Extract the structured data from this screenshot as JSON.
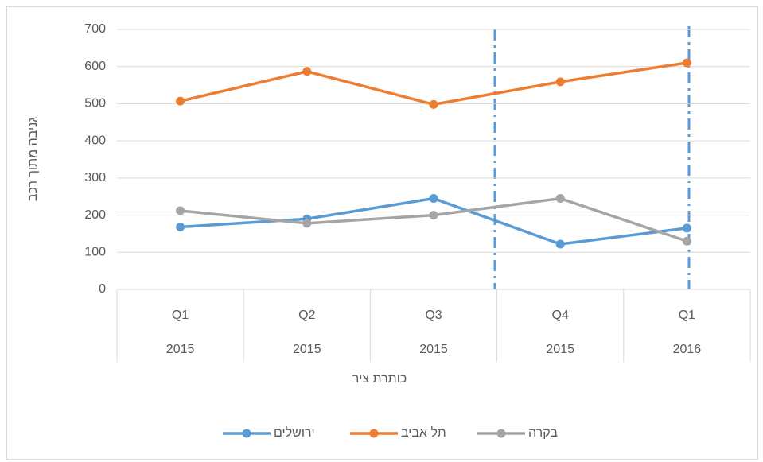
{
  "chart_data": {
    "type": "line",
    "y_label": "גניבה מתוך רכב",
    "x_label": "כותרת ציר",
    "categories": [
      [
        "Q1",
        "2015"
      ],
      [
        "Q2",
        "2015"
      ],
      [
        "Q3",
        "2015"
      ],
      [
        "Q4",
        "2015"
      ],
      [
        "Q1",
        "2016"
      ]
    ],
    "series": [
      {
        "name": "ירושלים",
        "color": "#5b9bd5",
        "values": [
          168,
          190,
          245,
          122,
          165
        ]
      },
      {
        "name": "תל אביב",
        "color": "#ed7d31",
        "values": [
          507,
          587,
          498,
          559,
          610
        ]
      },
      {
        "name": "בקרה",
        "color": "#a5a5a5",
        "values": [
          212,
          178,
          200,
          245,
          130
        ]
      }
    ],
    "ylim": [
      0,
      700
    ],
    "yticks": [
      0,
      100,
      200,
      300,
      400,
      500,
      600,
      700
    ],
    "grid": true,
    "legend": "bottom"
  }
}
